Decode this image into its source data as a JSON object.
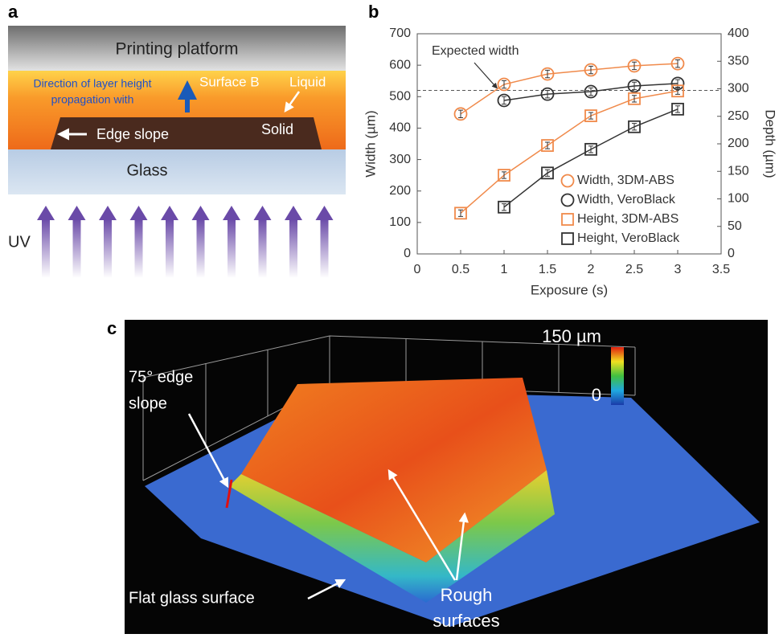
{
  "panels": {
    "a": "a",
    "b": "b",
    "c": "c"
  },
  "diagram": {
    "platform": "Printing platform",
    "direction_line1": "Direction of layer height",
    "direction_line2": "propagation with",
    "surface": "Surface B",
    "liquid": "Liquid",
    "edge": "Edge slope",
    "solid": "Solid",
    "glass": "Glass",
    "uv": "UV"
  },
  "chart_data": {
    "type": "scatter",
    "x_label": "Exposure (s)",
    "y_label": "Width (µm)",
    "y2_label": "Depth (µm)",
    "x": [
      0.5,
      1,
      1.5,
      2,
      2.5,
      3
    ],
    "xlim": [
      0,
      3.5
    ],
    "xticks": [
      0,
      0.5,
      1,
      1.5,
      2,
      2.5,
      3,
      3.5
    ],
    "ylim": [
      0,
      700
    ],
    "yticks": [
      0,
      100,
      200,
      300,
      400,
      500,
      600,
      700
    ],
    "y2lim": [
      0,
      400
    ],
    "y2ticks": [
      0,
      50,
      100,
      150,
      200,
      250,
      300,
      350,
      400
    ],
    "legend": "lower right",
    "annotation": {
      "text": "Expected width",
      "value": 520
    },
    "series": [
      {
        "name": "Width, 3DM-ABS",
        "color": "#f08a4b",
        "marker": "circle",
        "values": [
          445,
          539,
          572,
          585,
          598,
          605
        ],
        "errors": [
          12,
          12,
          12,
          12,
          12,
          12
        ]
      },
      {
        "name": "Width, VeroBlack",
        "color": "#333333",
        "marker": "circle",
        "values": [
          null,
          488,
          508,
          516,
          534,
          542
        ],
        "errors": [
          null,
          12,
          12,
          12,
          12,
          12
        ]
      },
      {
        "name": "Height, 3DM-ABS",
        "color": "#f08a4b",
        "marker": "square",
        "axis": "y2",
        "values": [
          74,
          143,
          197,
          251,
          282,
          296
        ],
        "errors": [
          6,
          6,
          6,
          6,
          6,
          6
        ]
      },
      {
        "name": "Height, VeroBlack",
        "color": "#333333",
        "marker": "square",
        "axis": "y2",
        "values": [
          null,
          85,
          147,
          190,
          231,
          263
        ],
        "errors": [
          null,
          6,
          6,
          6,
          6,
          6
        ]
      }
    ]
  },
  "surface_plot": {
    "scale_max": "150 µm",
    "scale_min": "0",
    "edge_line1": "75° edge",
    "edge_line2": "slope",
    "flat": "Flat glass surface",
    "rough_line1": "Rough",
    "rough_line2": "surfaces"
  }
}
